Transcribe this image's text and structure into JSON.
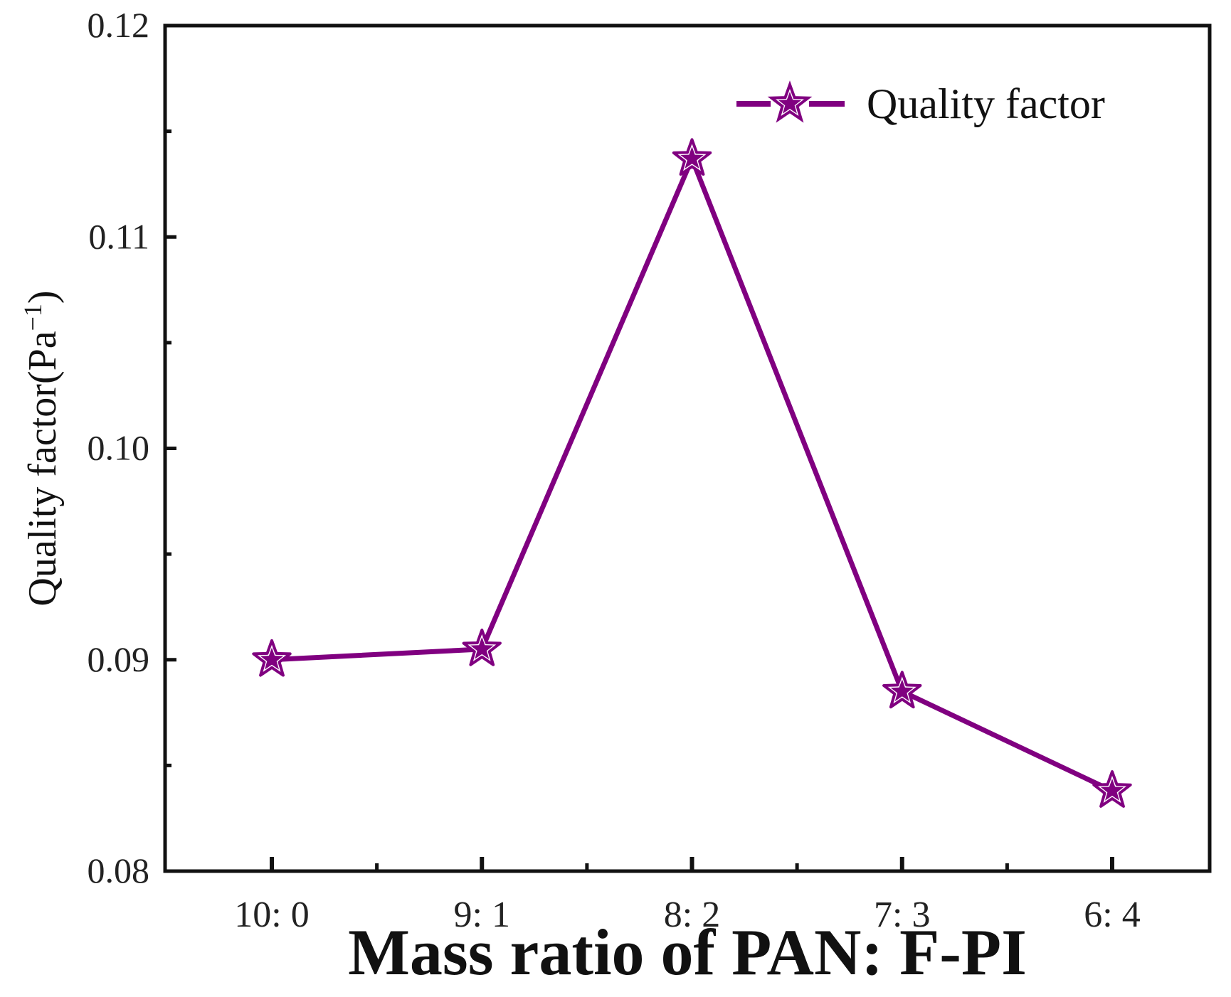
{
  "chart_data": {
    "type": "line",
    "title": "",
    "xlabel": "Mass ratio of PAN: F-PI",
    "ylabel": "Quality factor(Pa",
    "ylabel_superscript": "−1",
    "ylabel_close": ")",
    "categories": [
      "10:  0",
      "9:  1",
      "8:  2",
      "7:  3",
      "6:  4"
    ],
    "series": [
      {
        "name": "Quality factor",
        "values": [
          0.09,
          0.0905,
          0.1137,
          0.0885,
          0.0838
        ],
        "color": "#800080",
        "marker": "star"
      }
    ],
    "ylim": [
      0.08,
      0.12
    ],
    "yticks": [
      0.08,
      0.09,
      0.1,
      0.11,
      0.12
    ],
    "ytick_labels": [
      "0.08",
      "0.09",
      "0.10",
      "0.11",
      "0.12"
    ],
    "legend_position": "top-right",
    "grid": false
  }
}
